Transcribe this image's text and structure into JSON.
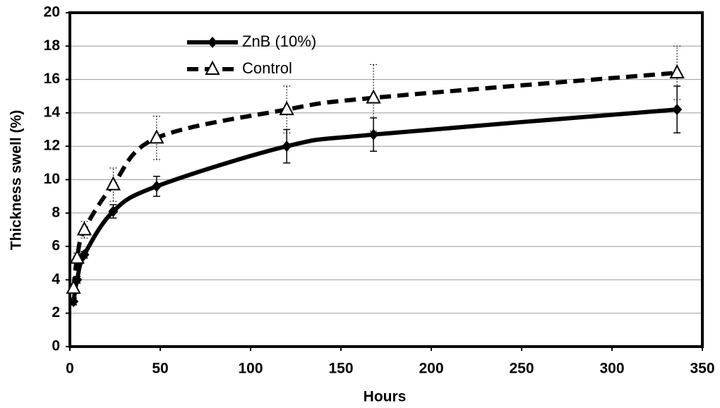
{
  "chart_data": {
    "type": "line",
    "xlabel": "Hours",
    "ylabel": "Thickness swell (%)",
    "x": [
      2,
      4,
      8,
      24,
      48,
      120,
      168,
      336
    ],
    "series": [
      {
        "name": "ZnB (10%)",
        "color": "#000000",
        "marker": "diamond",
        "linestyle": "solid",
        "values": [
          2.7,
          4.0,
          5.5,
          8.1,
          9.6,
          12.0,
          12.7,
          14.2
        ],
        "errors": [
          0.2,
          0.2,
          0.2,
          0.4,
          0.6,
          1.0,
          1.0,
          1.4
        ]
      },
      {
        "name": "Control",
        "color": "#000000",
        "marker": "triangle",
        "linestyle": "dashed",
        "values": [
          3.5,
          5.3,
          7.0,
          9.7,
          12.5,
          14.2,
          14.9,
          16.4
        ],
        "errors": [
          0.2,
          0.3,
          0.5,
          1.0,
          1.3,
          1.4,
          2.0,
          1.6
        ]
      }
    ],
    "xlim": [
      0,
      350
    ],
    "xticks": [
      0,
      50,
      100,
      150,
      200,
      250,
      300,
      350
    ],
    "ylim": [
      0,
      20
    ],
    "yticks": [
      0,
      2,
      4,
      6,
      8,
      10,
      12,
      14,
      16,
      18,
      20
    ],
    "grid": true,
    "legend": "upper left"
  }
}
